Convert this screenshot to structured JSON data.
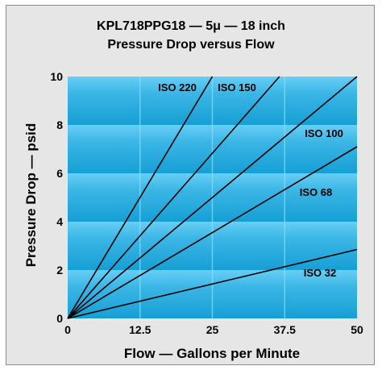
{
  "chart_data": {
    "type": "line",
    "title_line1": "KPL718PPG18 —  5μ — 18 inch",
    "title_line2": "Pressure Drop versus Flow",
    "xlabel": "Flow — Gallons per Minute",
    "ylabel": "Pressure Drop — psid",
    "xlim": [
      0,
      50
    ],
    "ylim": [
      0,
      10
    ],
    "x_ticks": [
      "0",
      "12.5",
      "25",
      "37.5",
      "50"
    ],
    "y_ticks": [
      "0",
      "2",
      "4",
      "6",
      "8",
      "10"
    ],
    "grid": true,
    "series": [
      {
        "name": "ISO 220",
        "x": [
          0,
          25.0
        ],
        "y": [
          0,
          10
        ]
      },
      {
        "name": "ISO 150",
        "x": [
          0,
          36.6
        ],
        "y": [
          0,
          10
        ]
      },
      {
        "name": "ISO 100",
        "x": [
          0,
          50
        ],
        "y": [
          0,
          10
        ]
      },
      {
        "name": "ISO 68",
        "x": [
          0,
          50
        ],
        "y": [
          0,
          7.1
        ]
      },
      {
        "name": "ISO 32",
        "x": [
          0,
          50
        ],
        "y": [
          0,
          2.85
        ]
      }
    ]
  },
  "colors": {
    "plot_bg_light": "#5ec8f0",
    "plot_bg_dark": "#169fd4",
    "line": "#000000"
  }
}
